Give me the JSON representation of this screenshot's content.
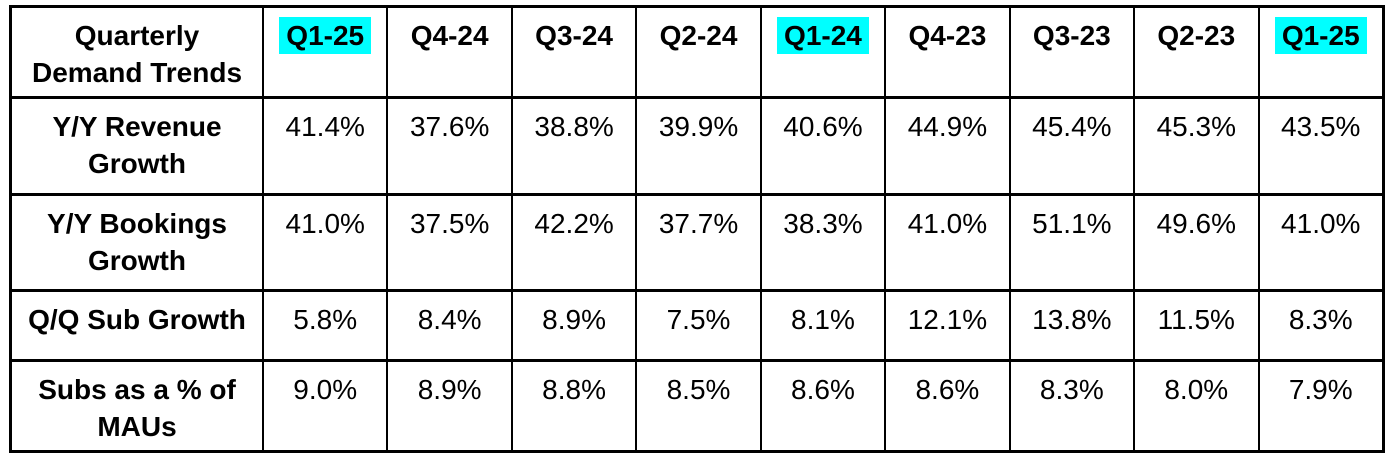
{
  "table": {
    "title": "Quarterly\nDemand Trends",
    "highlight_color": "#00ffff",
    "columns": [
      {
        "label": "Q1-25",
        "highlighted": true
      },
      {
        "label": "Q4-24",
        "highlighted": false
      },
      {
        "label": "Q3-24",
        "highlighted": false
      },
      {
        "label": "Q2-24",
        "highlighted": false
      },
      {
        "label": "Q1-24",
        "highlighted": true
      },
      {
        "label": "Q4-23",
        "highlighted": false
      },
      {
        "label": "Q3-23",
        "highlighted": false
      },
      {
        "label": "Q2-23",
        "highlighted": false
      },
      {
        "label": "Q1-25",
        "highlighted": true
      }
    ],
    "rows": [
      {
        "label": "Y/Y Revenue\nGrowth",
        "values": [
          "41.4%",
          "37.6%",
          "38.8%",
          "39.9%",
          "40.6%",
          "44.9%",
          "45.4%",
          "45.3%",
          "43.5%"
        ]
      },
      {
        "label": "Y/Y Bookings\nGrowth",
        "values": [
          "41.0%",
          "37.5%",
          "42.2%",
          "37.7%",
          "38.3%",
          "41.0%",
          "51.1%",
          "49.6%",
          "41.0%"
        ]
      },
      {
        "label": "Q/Q Sub Growth",
        "values": [
          "5.8%",
          "8.4%",
          "8.9%",
          "7.5%",
          "8.1%",
          "12.1%",
          "13.8%",
          "11.5%",
          "8.3%"
        ]
      },
      {
        "label": "Subs as a % of\nMAUs",
        "values": [
          "9.0%",
          "8.9%",
          "8.8%",
          "8.5%",
          "8.6%",
          "8.6%",
          "8.3%",
          "8.0%",
          "7.9%"
        ]
      }
    ]
  },
  "chart_data": {
    "type": "table",
    "title": "Quarterly Demand Trends",
    "categories": [
      "Q1-25",
      "Q4-24",
      "Q3-24",
      "Q2-24",
      "Q1-24",
      "Q4-23",
      "Q3-23",
      "Q2-23",
      "Q1-25"
    ],
    "highlighted_category_indices": [
      0,
      4,
      8
    ],
    "unit": "percent",
    "series": [
      {
        "name": "Y/Y Revenue Growth",
        "values": [
          41.4,
          37.6,
          38.8,
          39.9,
          40.6,
          44.9,
          45.4,
          45.3,
          43.5
        ]
      },
      {
        "name": "Y/Y Bookings Growth",
        "values": [
          41.0,
          37.5,
          42.2,
          37.7,
          38.3,
          41.0,
          51.1,
          49.6,
          41.0
        ]
      },
      {
        "name": "Q/Q Sub Growth",
        "values": [
          5.8,
          8.4,
          8.9,
          7.5,
          8.1,
          12.1,
          13.8,
          11.5,
          8.3
        ]
      },
      {
        "name": "Subs as a % of MAUs",
        "values": [
          9.0,
          8.9,
          8.8,
          8.5,
          8.6,
          8.6,
          8.3,
          8.0,
          7.9
        ]
      }
    ],
    "layout": {
      "header_highlight_color": "#00ffff",
      "grid": true,
      "legend_position": "none"
    }
  }
}
